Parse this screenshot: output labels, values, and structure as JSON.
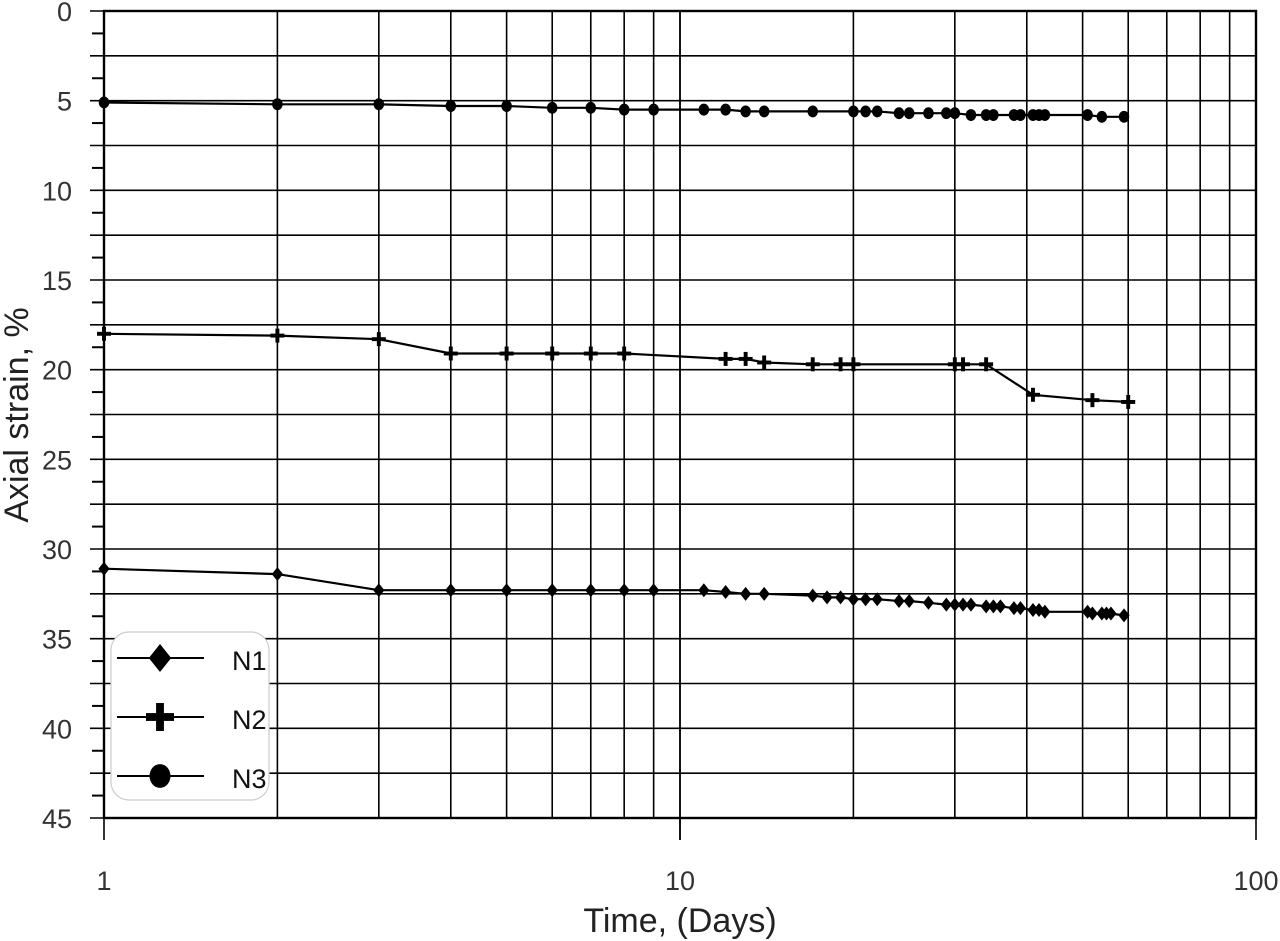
{
  "chart_data": {
    "type": "line",
    "title": "",
    "xlabel": "Time, (Days)",
    "ylabel": "Axial strain,  %",
    "x_scale": "log",
    "xlim": [
      1,
      100
    ],
    "ylim": [
      0,
      45
    ],
    "y_inverted": true,
    "grid": true,
    "x_tick_labels": [
      "1",
      "10",
      "100"
    ],
    "y_tick_labels": [
      "0",
      "5",
      "10",
      "15",
      "20",
      "25",
      "30",
      "35",
      "40",
      "45"
    ],
    "legend_position": "lower left",
    "legend": [
      {
        "name": "N1",
        "marker": "diamond"
      },
      {
        "name": "N2",
        "marker": "plus"
      },
      {
        "name": "N3",
        "marker": "circle"
      }
    ],
    "series": [
      {
        "name": "N1",
        "marker": "diamond",
        "x": [
          1,
          2,
          3,
          4,
          5,
          6,
          7,
          8,
          9,
          11,
          12,
          13,
          14,
          17,
          18,
          19,
          20,
          21,
          22,
          24,
          25,
          27,
          29,
          30,
          31,
          32,
          34,
          35,
          36,
          38,
          39,
          41,
          42,
          43,
          51,
          52,
          54,
          55,
          56,
          59
        ],
        "y": [
          31.1,
          31.4,
          32.3,
          32.3,
          32.3,
          32.3,
          32.3,
          32.3,
          32.3,
          32.3,
          32.4,
          32.5,
          32.5,
          32.6,
          32.7,
          32.7,
          32.8,
          32.8,
          32.8,
          32.9,
          32.9,
          33.0,
          33.1,
          33.1,
          33.1,
          33.1,
          33.2,
          33.2,
          33.2,
          33.3,
          33.3,
          33.4,
          33.4,
          33.5,
          33.5,
          33.6,
          33.6,
          33.6,
          33.6,
          33.7
        ]
      },
      {
        "name": "N2",
        "marker": "plus",
        "x": [
          1,
          2,
          3,
          4,
          5,
          6,
          7,
          8,
          12,
          13,
          14,
          17,
          19,
          20,
          30,
          31,
          34,
          41,
          52,
          60
        ],
        "y": [
          18.0,
          18.1,
          18.3,
          19.1,
          19.1,
          19.1,
          19.1,
          19.1,
          19.4,
          19.4,
          19.6,
          19.7,
          19.7,
          19.7,
          19.7,
          19.7,
          19.7,
          21.4,
          21.7,
          21.8
        ]
      },
      {
        "name": "N3",
        "marker": "circle",
        "x": [
          1,
          2,
          3,
          4,
          5,
          6,
          7,
          8,
          9,
          11,
          12,
          13,
          14,
          17,
          20,
          21,
          22,
          24,
          25,
          27,
          29,
          30,
          32,
          34,
          35,
          38,
          39,
          41,
          42,
          43,
          51,
          54,
          59
        ],
        "y": [
          5.1,
          5.2,
          5.2,
          5.3,
          5.3,
          5.4,
          5.4,
          5.5,
          5.5,
          5.5,
          5.5,
          5.6,
          5.6,
          5.6,
          5.6,
          5.6,
          5.6,
          5.7,
          5.7,
          5.7,
          5.7,
          5.7,
          5.8,
          5.8,
          5.8,
          5.8,
          5.8,
          5.8,
          5.8,
          5.8,
          5.8,
          5.9,
          5.9
        ]
      }
    ]
  },
  "colors": {
    "line": "#000000",
    "grid": "#000000",
    "text": "#333333",
    "background": "#ffffff",
    "legend_border": "#cccccc"
  }
}
